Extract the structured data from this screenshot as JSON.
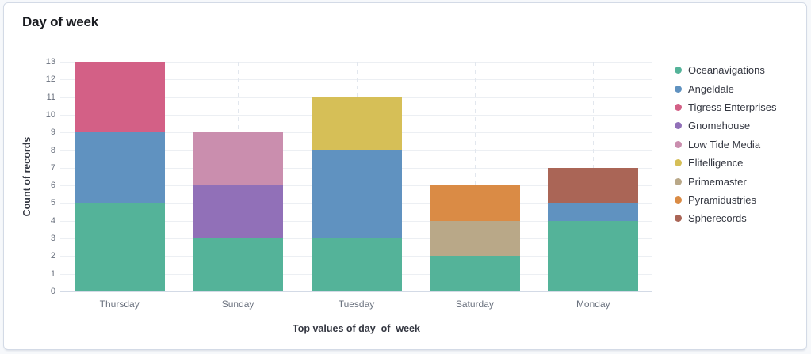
{
  "header": {
    "title": "Day of week"
  },
  "chart_data": {
    "type": "bar",
    "stacked": true,
    "title": "Day of week",
    "xlabel": "Top values of day_of_week",
    "ylabel": "Count of records",
    "categories": [
      "Thursday",
      "Sunday",
      "Tuesday",
      "Saturday",
      "Monday"
    ],
    "series": [
      {
        "name": "Oceanavigations",
        "color": "#54B399",
        "values": [
          5,
          3,
          3,
          2,
          4
        ]
      },
      {
        "name": "Angeldale",
        "color": "#6092C0",
        "values": [
          4,
          0,
          5,
          0,
          1
        ]
      },
      {
        "name": "Tigress Enterprises",
        "color": "#D36086",
        "values": [
          4,
          0,
          0,
          0,
          0
        ]
      },
      {
        "name": "Gnomehouse",
        "color": "#9170B8",
        "values": [
          0,
          3,
          0,
          0,
          0
        ]
      },
      {
        "name": "Low Tide Media",
        "color": "#CA8EAE",
        "values": [
          0,
          3,
          0,
          0,
          0
        ]
      },
      {
        "name": "Elitelligence",
        "color": "#D6BF57",
        "values": [
          0,
          0,
          3,
          0,
          0
        ]
      },
      {
        "name": "Primemaster",
        "color": "#B9A888",
        "values": [
          0,
          0,
          0,
          2,
          0
        ]
      },
      {
        "name": "Pyramidustries",
        "color": "#DA8B45",
        "values": [
          0,
          0,
          0,
          2,
          0
        ]
      },
      {
        "name": "Spherecords",
        "color": "#AA6556",
        "values": [
          0,
          0,
          0,
          0,
          2
        ]
      }
    ],
    "ylim": [
      0,
      13
    ],
    "tick_interval": 1,
    "grid": true,
    "legend_position": "right"
  }
}
